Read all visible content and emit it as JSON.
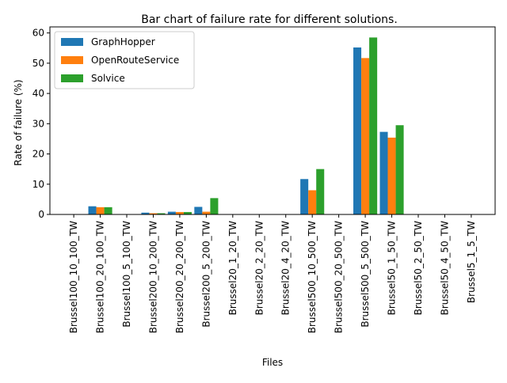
{
  "chart_data": {
    "type": "bar",
    "title": "Bar chart of failure rate for different solutions.",
    "xlabel": "Files",
    "ylabel": "Rate of failure (%)",
    "ylim": [
      0,
      62
    ],
    "yticks": [
      0,
      10,
      20,
      30,
      40,
      50,
      60
    ],
    "grid": false,
    "legend_position": "top-left",
    "categories": [
      "Brussel100_10_100_TW",
      "Brussel100_20_100_TW",
      "Brussel100_5_100_TW",
      "Brussel200_10_200_TW",
      "Brussel200_20_200_TW",
      "Brussel200_5_200_TW",
      "Brussel20_1_20_TW",
      "Brussel20_2_20_TW",
      "Brussel20_4_20_TW",
      "Brussel500_10_500_TW",
      "Brussel500_20_500_TW",
      "Brussel500_5_500_TW",
      "Brussel50_1_50_TW",
      "Brussel50_2_50_TW",
      "Brussel50_4_50_TW",
      "Brussel5_1_5_TW"
    ],
    "series": [
      {
        "name": "GraphHopper",
        "color": "#1f77b4",
        "values": [
          0,
          2.7,
          0,
          0.6,
          0.9,
          2.5,
          0,
          0,
          0,
          11.7,
          0,
          55.2,
          27.3,
          0,
          0,
          0
        ]
      },
      {
        "name": "OpenRouteService",
        "color": "#ff7f0e",
        "values": [
          0,
          2.4,
          0,
          0.4,
          0.8,
          0.9,
          0,
          0,
          0,
          8.0,
          0,
          51.7,
          25.4,
          0,
          0,
          0
        ]
      },
      {
        "name": "Solvice",
        "color": "#2ca02c",
        "values": [
          0,
          2.4,
          0,
          0.4,
          0.8,
          5.4,
          0,
          0,
          0,
          15.0,
          0,
          58.5,
          29.5,
          0,
          0,
          0
        ]
      }
    ]
  }
}
